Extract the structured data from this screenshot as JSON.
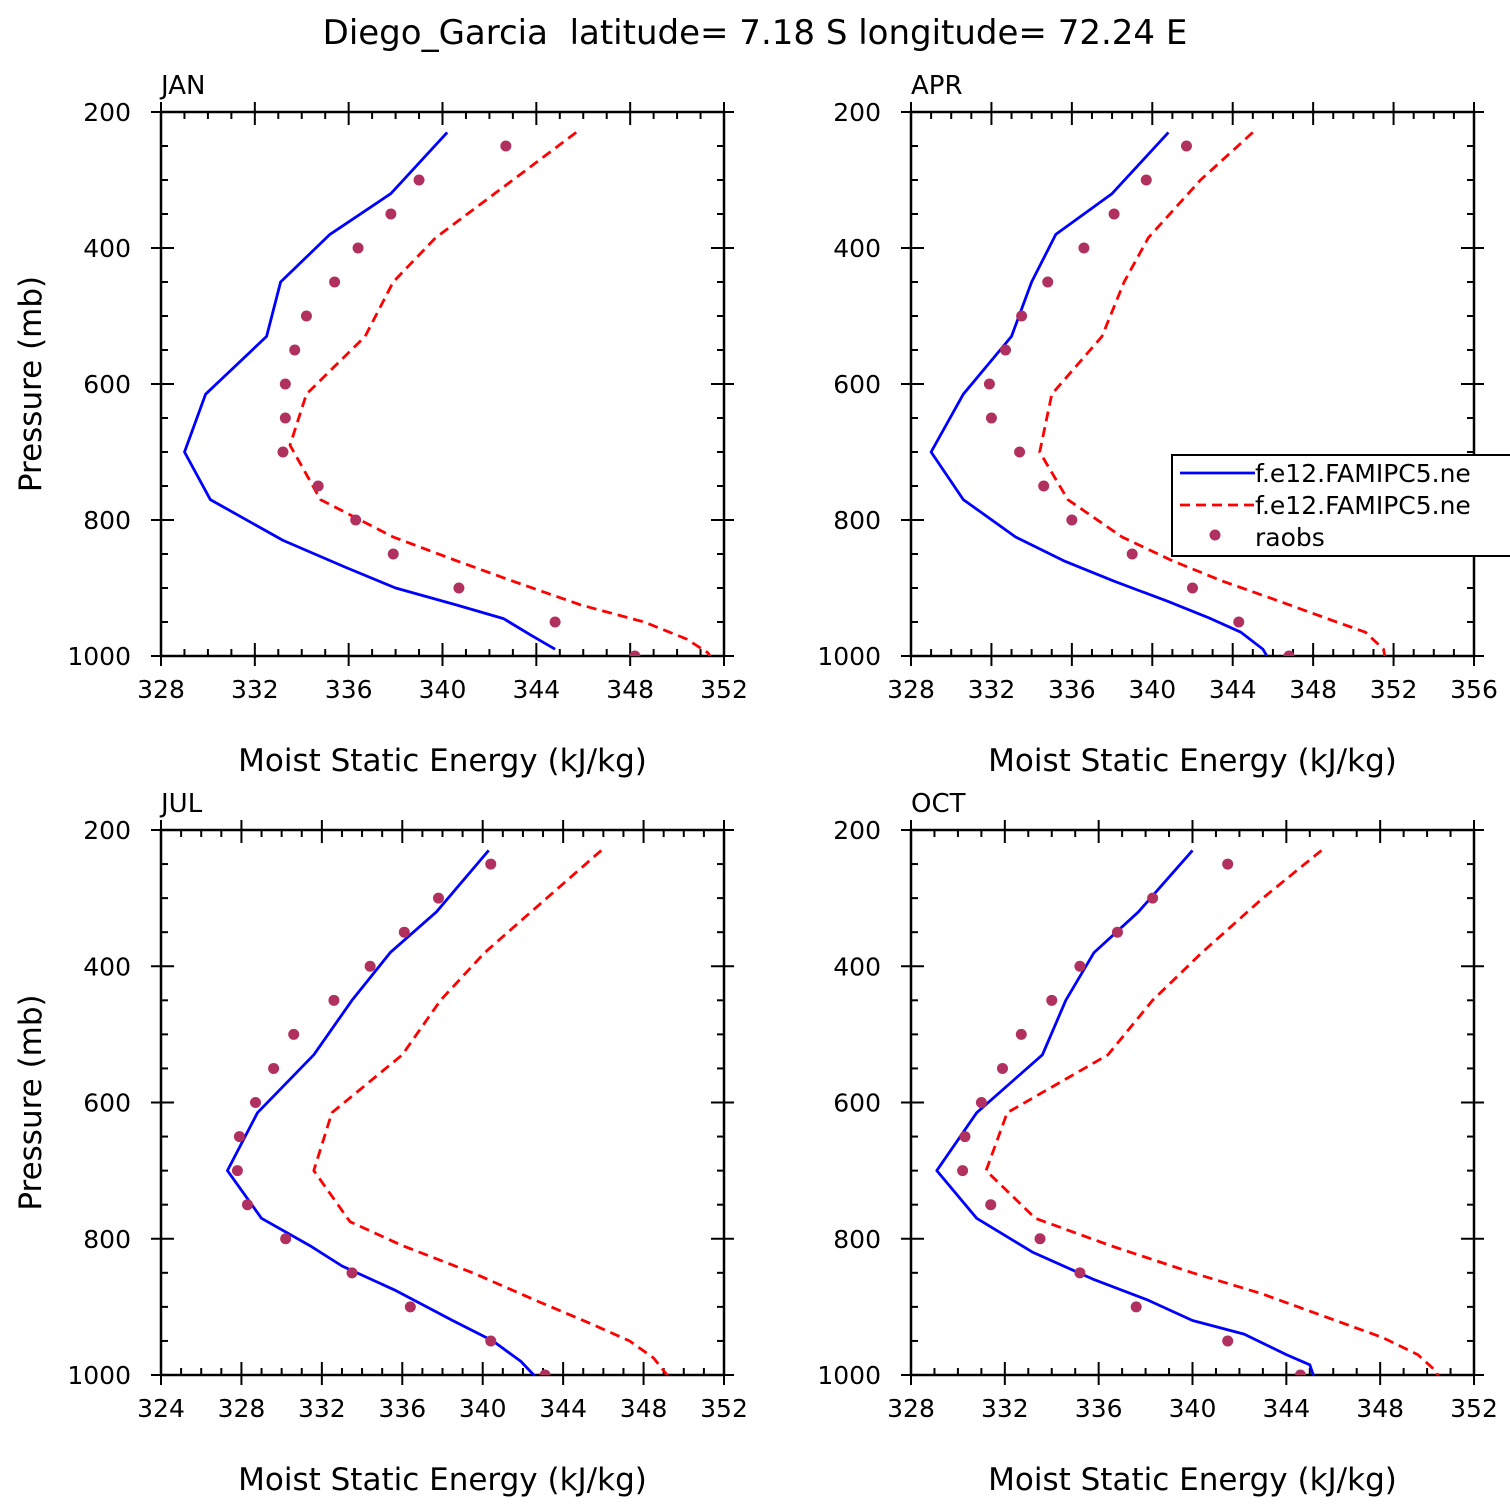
{
  "page": {
    "title": "Diego_Garcia  latitude= 7.18 S longitude= 72.24 E"
  },
  "legend": {
    "panel_index": 1,
    "entries": [
      {
        "label": "f.e12.FAMIPC5.ne",
        "style": "solid",
        "color": "#0000ff"
      },
      {
        "label": "f.e12.FAMIPC5.ne",
        "style": "dashed",
        "color": "#ff0000"
      },
      {
        "label": "raobs",
        "style": "dot",
        "color": "#b03060"
      }
    ]
  },
  "chart_data": [
    {
      "type": "line",
      "title": "JAN",
      "xlabel": "Moist Static Energy (kJ/kg)",
      "ylabel": "Pressure (mb)",
      "xlim": [
        328,
        352
      ],
      "ylim": [
        200,
        1000
      ],
      "y_inverted": true,
      "xticks": [
        "328",
        "332",
        "336",
        "340",
        "344",
        "348",
        "352"
      ],
      "yticks": [
        "200",
        "400",
        "600",
        "800",
        "1000"
      ],
      "series": [
        {
          "color": "#0000ff",
          "style": "solid",
          "points": [
            [
              340.2,
              230
            ],
            [
              337.8,
              320
            ],
            [
              335.2,
              380
            ],
            [
              333.1,
              450
            ],
            [
              332.5,
              530
            ],
            [
              329.9,
              615
            ],
            [
              329.0,
              700
            ],
            [
              330.1,
              770
            ],
            [
              333.2,
              830
            ],
            [
              335.9,
              870
            ],
            [
              338.0,
              900
            ],
            [
              340.6,
              925
            ],
            [
              342.6,
              945
            ],
            [
              343.8,
              970
            ],
            [
              344.8,
              990
            ]
          ]
        },
        {
          "color": "#ff0000",
          "style": "dashed",
          "points": [
            [
              345.7,
              230
            ],
            [
              343.0,
              300
            ],
            [
              339.7,
              385
            ],
            [
              337.9,
              450
            ],
            [
              336.7,
              530
            ],
            [
              334.2,
              615
            ],
            [
              333.5,
              690
            ],
            [
              334.8,
              770
            ],
            [
              337.9,
              825
            ],
            [
              340.6,
              860
            ],
            [
              343.0,
              890
            ],
            [
              345.9,
              925
            ],
            [
              348.6,
              950
            ],
            [
              350.4,
              975
            ],
            [
              351.3,
              995
            ],
            [
              351.5,
              1005
            ]
          ]
        },
        {
          "color": "#b03060",
          "style": "dot",
          "points": [
            [
              342.7,
              250
            ],
            [
              339.0,
              300
            ],
            [
              337.8,
              350
            ],
            [
              336.4,
              400
            ],
            [
              335.4,
              450
            ],
            [
              334.2,
              500
            ],
            [
              333.7,
              550
            ],
            [
              333.3,
              600
            ],
            [
              333.3,
              650
            ],
            [
              333.2,
              700
            ],
            [
              334.7,
              750
            ],
            [
              336.3,
              800
            ],
            [
              337.9,
              850
            ],
            [
              340.7,
              900
            ],
            [
              344.8,
              950
            ],
            [
              348.2,
              1000
            ]
          ]
        }
      ]
    },
    {
      "type": "line",
      "title": "APR",
      "xlabel": "Moist Static Energy (kJ/kg)",
      "ylabel": "",
      "xlim": [
        328,
        356
      ],
      "ylim": [
        200,
        1000
      ],
      "y_inverted": true,
      "xticks": [
        "328",
        "332",
        "336",
        "340",
        "344",
        "348",
        "352",
        "356"
      ],
      "yticks": [
        "200",
        "400",
        "600",
        "800",
        "1000"
      ],
      "series": [
        {
          "color": "#0000ff",
          "style": "solid",
          "points": [
            [
              340.8,
              230
            ],
            [
              338.0,
              320
            ],
            [
              335.2,
              380
            ],
            [
              334.0,
              450
            ],
            [
              333.0,
              530
            ],
            [
              330.6,
              615
            ],
            [
              329.0,
              700
            ],
            [
              330.6,
              770
            ],
            [
              333.2,
              825
            ],
            [
              335.6,
              860
            ],
            [
              338.1,
              890
            ],
            [
              340.8,
              920
            ],
            [
              342.9,
              945
            ],
            [
              344.4,
              965
            ],
            [
              345.5,
              990
            ],
            [
              345.8,
              1005
            ]
          ]
        },
        {
          "color": "#ff0000",
          "style": "dashed",
          "points": [
            [
              345.0,
              230
            ],
            [
              342.4,
              300
            ],
            [
              339.8,
              385
            ],
            [
              338.6,
              450
            ],
            [
              337.5,
              530
            ],
            [
              335.0,
              615
            ],
            [
              334.4,
              700
            ],
            [
              335.8,
              770
            ],
            [
              338.5,
              825
            ],
            [
              341.0,
              860
            ],
            [
              343.5,
              890
            ],
            [
              345.9,
              915
            ],
            [
              348.7,
              945
            ],
            [
              350.6,
              965
            ],
            [
              351.5,
              990
            ],
            [
              351.6,
              1005
            ]
          ]
        },
        {
          "color": "#b03060",
          "style": "dot",
          "points": [
            [
              341.7,
              250
            ],
            [
              339.7,
              300
            ],
            [
              338.1,
              350
            ],
            [
              336.6,
              400
            ],
            [
              334.8,
              450
            ],
            [
              333.5,
              500
            ],
            [
              332.7,
              550
            ],
            [
              331.9,
              600
            ],
            [
              332.0,
              650
            ],
            [
              333.4,
              700
            ],
            [
              334.6,
              750
            ],
            [
              336.0,
              800
            ],
            [
              339.0,
              850
            ],
            [
              342.0,
              900
            ],
            [
              344.3,
              950
            ],
            [
              346.8,
              1000
            ]
          ]
        }
      ]
    },
    {
      "type": "line",
      "title": "JUL",
      "xlabel": "Moist Static Energy (kJ/kg)",
      "ylabel": "Pressure (mb)",
      "xlim": [
        324,
        352
      ],
      "ylim": [
        200,
        1000
      ],
      "y_inverted": true,
      "xticks": [
        "324",
        "328",
        "332",
        "336",
        "340",
        "344",
        "348",
        "352"
      ],
      "yticks": [
        "200",
        "400",
        "600",
        "800",
        "1000"
      ],
      "series": [
        {
          "color": "#0000ff",
          "style": "solid",
          "points": [
            [
              340.3,
              230
            ],
            [
              337.7,
              320
            ],
            [
              335.4,
              380
            ],
            [
              333.5,
              450
            ],
            [
              331.6,
              530
            ],
            [
              328.8,
              615
            ],
            [
              327.3,
              700
            ],
            [
              329.0,
              770
            ],
            [
              331.4,
              810
            ],
            [
              333.0,
              840
            ],
            [
              335.6,
              875
            ],
            [
              338.5,
              920
            ],
            [
              340.5,
              950
            ],
            [
              341.9,
              980
            ],
            [
              342.7,
              1005
            ]
          ]
        },
        {
          "color": "#ff0000",
          "style": "dashed",
          "points": [
            [
              345.9,
              230
            ],
            [
              342.8,
              310
            ],
            [
              340.1,
              380
            ],
            [
              337.9,
              450
            ],
            [
              336.0,
              530
            ],
            [
              332.5,
              615
            ],
            [
              331.6,
              700
            ],
            [
              333.4,
              775
            ],
            [
              336.0,
              810
            ],
            [
              339.5,
              850
            ],
            [
              342.6,
              890
            ],
            [
              345.4,
              925
            ],
            [
              347.3,
              950
            ],
            [
              348.5,
              975
            ],
            [
              349.3,
              1005
            ]
          ]
        },
        {
          "color": "#b03060",
          "style": "dot",
          "points": [
            [
              340.4,
              250
            ],
            [
              337.8,
              300
            ],
            [
              336.1,
              350
            ],
            [
              334.4,
              400
            ],
            [
              332.6,
              450
            ],
            [
              330.6,
              500
            ],
            [
              329.6,
              550
            ],
            [
              328.7,
              600
            ],
            [
              327.9,
              650
            ],
            [
              327.8,
              700
            ],
            [
              328.3,
              750
            ],
            [
              330.2,
              800
            ],
            [
              333.5,
              850
            ],
            [
              336.4,
              900
            ],
            [
              340.4,
              950
            ],
            [
              343.1,
              1000
            ]
          ]
        }
      ]
    },
    {
      "type": "line",
      "title": "OCT",
      "xlabel": "Moist Static Energy (kJ/kg)",
      "ylabel": "",
      "xlim": [
        328,
        352
      ],
      "ylim": [
        200,
        1000
      ],
      "y_inverted": true,
      "xticks": [
        "328",
        "332",
        "336",
        "340",
        "344",
        "348",
        "352"
      ],
      "yticks": [
        "200",
        "400",
        "600",
        "800",
        "1000"
      ],
      "series": [
        {
          "color": "#0000ff",
          "style": "solid",
          "points": [
            [
              340.0,
              230
            ],
            [
              337.7,
              320
            ],
            [
              335.8,
              380
            ],
            [
              334.6,
              450
            ],
            [
              333.6,
              530
            ],
            [
              330.8,
              615
            ],
            [
              329.1,
              700
            ],
            [
              330.8,
              770
            ],
            [
              333.2,
              820
            ],
            [
              335.8,
              860
            ],
            [
              338.1,
              890
            ],
            [
              340.0,
              920
            ],
            [
              342.2,
              940
            ],
            [
              344.0,
              970
            ],
            [
              345.0,
              985
            ],
            [
              345.2,
              1005
            ]
          ]
        },
        {
          "color": "#ff0000",
          "style": "dashed",
          "points": [
            [
              345.5,
              230
            ],
            [
              343.0,
              300
            ],
            [
              340.4,
              380
            ],
            [
              338.3,
              450
            ],
            [
              336.4,
              530
            ],
            [
              332.1,
              615
            ],
            [
              331.2,
              700
            ],
            [
              333.3,
              770
            ],
            [
              336.5,
              810
            ],
            [
              340.0,
              850
            ],
            [
              342.9,
              880
            ],
            [
              345.7,
              915
            ],
            [
              348.1,
              945
            ],
            [
              349.6,
              970
            ],
            [
              350.4,
              995
            ],
            [
              350.5,
              1005
            ]
          ]
        },
        {
          "color": "#b03060",
          "style": "dot",
          "points": [
            [
              341.5,
              250
            ],
            [
              338.3,
              300
            ],
            [
              336.8,
              350
            ],
            [
              335.2,
              400
            ],
            [
              334.0,
              450
            ],
            [
              332.7,
              500
            ],
            [
              331.9,
              550
            ],
            [
              331.0,
              600
            ],
            [
              330.3,
              650
            ],
            [
              330.2,
              700
            ],
            [
              331.4,
              750
            ],
            [
              333.5,
              800
            ],
            [
              335.2,
              850
            ],
            [
              337.6,
              900
            ],
            [
              341.5,
              950
            ],
            [
              344.6,
              1000
            ]
          ]
        }
      ]
    }
  ]
}
